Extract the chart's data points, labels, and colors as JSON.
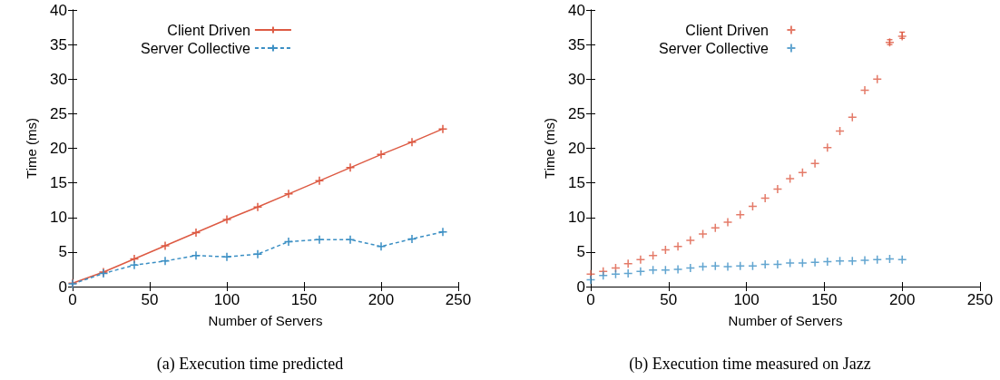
{
  "chart_data": [
    {
      "type": "line",
      "title": "(a) Execution time predicted",
      "xlabel": "Number of Servers",
      "ylabel": "Time (ms)",
      "xlim": [
        0,
        250
      ],
      "xticks": [
        0,
        50,
        100,
        150,
        200,
        250
      ],
      "ylim": [
        0,
        40
      ],
      "yticks": [
        0,
        5,
        10,
        15,
        20,
        25,
        30,
        35,
        40
      ],
      "grid": false,
      "legend": "top",
      "x": [
        0,
        20,
        40,
        60,
        80,
        100,
        120,
        140,
        160,
        180,
        200,
        220,
        240
      ],
      "series": [
        {
          "name": "Client Driven",
          "color": "#dd5a43",
          "marker": "cross",
          "line_style": "solid",
          "values": [
            0.5,
            2.1,
            4.0,
            5.9,
            7.8,
            9.7,
            11.5,
            13.4,
            15.3,
            17.2,
            19.1,
            20.9,
            22.8
          ]
        },
        {
          "name": "Server Collective",
          "color": "#3b8fc4",
          "marker": "cross",
          "line_style": "dashed",
          "values": [
            0.4,
            1.9,
            3.1,
            3.7,
            4.5,
            4.3,
            4.7,
            6.5,
            6.8,
            6.8,
            5.8,
            6.9,
            7.9
          ]
        }
      ]
    },
    {
      "type": "scatter",
      "title": "(b) Execution time measured on Jazz",
      "xlabel": "Number of Servers",
      "ylabel": "Time (ms)",
      "xlim": [
        0,
        250
      ],
      "xticks": [
        0,
        50,
        100,
        150,
        200,
        250
      ],
      "ylim": [
        0,
        40
      ],
      "yticks": [
        0,
        5,
        10,
        15,
        20,
        25,
        30,
        35,
        40
      ],
      "grid": false,
      "legend": "top",
      "x": [
        0,
        8,
        16,
        24,
        32,
        40,
        48,
        56,
        64,
        72,
        80,
        88,
        96,
        104,
        112,
        120,
        128,
        136,
        144,
        152,
        160,
        168,
        176,
        184,
        192,
        200
      ],
      "series": [
        {
          "name": "Client Driven",
          "color": "#dd5a43",
          "marker": "cross",
          "values": [
            1.8,
            2.2,
            2.7,
            3.3,
            3.9,
            4.5,
            5.3,
            5.8,
            6.7,
            7.6,
            8.5,
            9.3,
            10.4,
            11.6,
            12.8,
            14.1,
            15.6,
            16.5,
            17.8,
            20.1,
            22.5,
            24.5,
            28.4,
            30.0,
            35.3,
            36.2
          ],
          "errors": [
            null,
            null,
            null,
            null,
            null,
            null,
            null,
            null,
            null,
            null,
            null,
            null,
            null,
            null,
            null,
            null,
            null,
            null,
            null,
            null,
            null,
            null,
            null,
            null,
            [
              35.0,
              35.7
            ],
            [
              35.9,
              36.8
            ]
          ]
        },
        {
          "name": "Server Collective",
          "color": "#3b8fc4",
          "marker": "cross",
          "values": [
            1.0,
            1.6,
            1.8,
            1.9,
            2.2,
            2.4,
            2.4,
            2.5,
            2.7,
            2.9,
            3.0,
            2.9,
            3.0,
            3.0,
            3.2,
            3.2,
            3.4,
            3.4,
            3.5,
            3.6,
            3.7,
            3.7,
            3.8,
            3.9,
            4.0,
            3.9
          ]
        }
      ]
    }
  ]
}
